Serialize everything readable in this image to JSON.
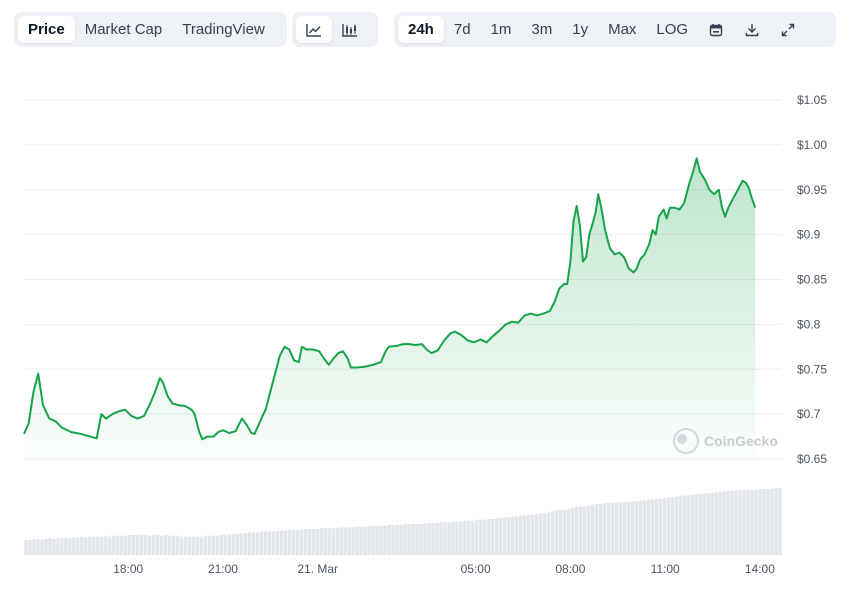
{
  "toolbar": {
    "view_tabs": [
      {
        "label": "Price",
        "active": true
      },
      {
        "label": "Market Cap",
        "active": false
      },
      {
        "label": "TradingView",
        "active": false
      }
    ],
    "chart_type_icons": [
      "line-chart-icon",
      "candlestick-chart-icon"
    ],
    "ranges": [
      {
        "label": "24h",
        "active": true
      },
      {
        "label": "7d",
        "active": false
      },
      {
        "label": "1m",
        "active": false
      },
      {
        "label": "3m",
        "active": false
      },
      {
        "label": "1y",
        "active": false
      },
      {
        "label": "Max",
        "active": false
      },
      {
        "label": "LOG",
        "active": false
      }
    ],
    "action_icons": [
      "calendar-icon",
      "download-icon",
      "expand-icon"
    ]
  },
  "watermark": "CoinGecko",
  "colors": {
    "line": "#16a34a",
    "fill_top": "#c6ecd2",
    "volume": "#e2e5ea",
    "grid": "#eceef1"
  },
  "chart_data": {
    "type": "area",
    "title": "",
    "xlabel": "",
    "ylabel": "",
    "ylim": [
      0.65,
      1.05
    ],
    "y_ticks": [
      1.05,
      1.0,
      0.95,
      0.9,
      0.85,
      0.8,
      0.75,
      0.7,
      0.65
    ],
    "y_tick_labels": [
      "$1.05",
      "$1.00",
      "$0.95",
      "$0.9",
      "$0.85",
      "$0.8",
      "$0.75",
      "$0.7",
      "$0.65"
    ],
    "x_range_hours": [
      14.7,
      38.7
    ],
    "x_ticks": [
      {
        "hour": 18,
        "label": "18:00"
      },
      {
        "hour": 21,
        "label": "21:00"
      },
      {
        "hour": 24,
        "label": "21. Mar"
      },
      {
        "hour": 29,
        "label": "05:00"
      },
      {
        "hour": 32,
        "label": "08:00"
      },
      {
        "hour": 35,
        "label": "11:00"
      },
      {
        "hour": 38,
        "label": "14:00"
      }
    ],
    "grid": true,
    "series": [
      {
        "points": [
          [
            14.7,
            0.678
          ],
          [
            14.85,
            0.69
          ],
          [
            15.0,
            0.725
          ],
          [
            15.15,
            0.745
          ],
          [
            15.3,
            0.71
          ],
          [
            15.5,
            0.695
          ],
          [
            15.7,
            0.692
          ],
          [
            15.9,
            0.685
          ],
          [
            16.2,
            0.68
          ],
          [
            16.5,
            0.678
          ],
          [
            16.8,
            0.675
          ],
          [
            17.0,
            0.673
          ],
          [
            17.15,
            0.7
          ],
          [
            17.3,
            0.695
          ],
          [
            17.5,
            0.7
          ],
          [
            17.7,
            0.703
          ],
          [
            17.9,
            0.705
          ],
          [
            18.1,
            0.698
          ],
          [
            18.3,
            0.695
          ],
          [
            18.5,
            0.698
          ],
          [
            18.7,
            0.712
          ],
          [
            18.85,
            0.725
          ],
          [
            19.0,
            0.74
          ],
          [
            19.1,
            0.735
          ],
          [
            19.25,
            0.72
          ],
          [
            19.4,
            0.712
          ],
          [
            19.6,
            0.71
          ],
          [
            19.8,
            0.709
          ],
          [
            20.0,
            0.705
          ],
          [
            20.1,
            0.7
          ],
          [
            20.25,
            0.68
          ],
          [
            20.35,
            0.672
          ],
          [
            20.5,
            0.675
          ],
          [
            20.7,
            0.675
          ],
          [
            20.85,
            0.68
          ],
          [
            21.0,
            0.682
          ],
          [
            21.2,
            0.679
          ],
          [
            21.4,
            0.681
          ],
          [
            21.6,
            0.695
          ],
          [
            21.75,
            0.688
          ],
          [
            21.9,
            0.679
          ],
          [
            22.0,
            0.678
          ],
          [
            22.15,
            0.69
          ],
          [
            22.35,
            0.705
          ],
          [
            22.5,
            0.725
          ],
          [
            22.65,
            0.745
          ],
          [
            22.8,
            0.765
          ],
          [
            22.95,
            0.775
          ],
          [
            23.1,
            0.772
          ],
          [
            23.25,
            0.76
          ],
          [
            23.4,
            0.758
          ],
          [
            23.5,
            0.775
          ],
          [
            23.65,
            0.772
          ],
          [
            23.85,
            0.772
          ],
          [
            24.05,
            0.77
          ],
          [
            24.2,
            0.762
          ],
          [
            24.35,
            0.755
          ],
          [
            24.5,
            0.762
          ],
          [
            24.65,
            0.768
          ],
          [
            24.8,
            0.77
          ],
          [
            24.95,
            0.762
          ],
          [
            25.05,
            0.752
          ],
          [
            25.25,
            0.752
          ],
          [
            25.5,
            0.753
          ],
          [
            25.75,
            0.755
          ],
          [
            26.0,
            0.758
          ],
          [
            26.15,
            0.77
          ],
          [
            26.25,
            0.775
          ],
          [
            26.5,
            0.776
          ],
          [
            26.7,
            0.778
          ],
          [
            26.9,
            0.778
          ],
          [
            27.1,
            0.777
          ],
          [
            27.3,
            0.778
          ],
          [
            27.45,
            0.772
          ],
          [
            27.6,
            0.768
          ],
          [
            27.8,
            0.771
          ],
          [
            28.0,
            0.782
          ],
          [
            28.2,
            0.79
          ],
          [
            28.35,
            0.792
          ],
          [
            28.55,
            0.788
          ],
          [
            28.75,
            0.782
          ],
          [
            28.95,
            0.78
          ],
          [
            29.15,
            0.783
          ],
          [
            29.35,
            0.78
          ],
          [
            29.55,
            0.787
          ],
          [
            29.75,
            0.793
          ],
          [
            29.95,
            0.8
          ],
          [
            30.15,
            0.803
          ],
          [
            30.35,
            0.802
          ],
          [
            30.55,
            0.81
          ],
          [
            30.75,
            0.812
          ],
          [
            30.95,
            0.81
          ],
          [
            31.15,
            0.812
          ],
          [
            31.35,
            0.815
          ],
          [
            31.5,
            0.825
          ],
          [
            31.65,
            0.84
          ],
          [
            31.8,
            0.845
          ],
          [
            31.9,
            0.845
          ],
          [
            32.0,
            0.87
          ],
          [
            32.1,
            0.915
          ],
          [
            32.2,
            0.932
          ],
          [
            32.3,
            0.91
          ],
          [
            32.4,
            0.87
          ],
          [
            32.5,
            0.875
          ],
          [
            32.6,
            0.9
          ],
          [
            32.7,
            0.912
          ],
          [
            32.8,
            0.925
          ],
          [
            32.88,
            0.945
          ],
          [
            32.98,
            0.93
          ],
          [
            33.1,
            0.905
          ],
          [
            33.25,
            0.885
          ],
          [
            33.4,
            0.878
          ],
          [
            33.55,
            0.88
          ],
          [
            33.7,
            0.875
          ],
          [
            33.85,
            0.862
          ],
          [
            34.0,
            0.858
          ],
          [
            34.1,
            0.862
          ],
          [
            34.2,
            0.872
          ],
          [
            34.35,
            0.878
          ],
          [
            34.5,
            0.89
          ],
          [
            34.6,
            0.905
          ],
          [
            34.7,
            0.9
          ],
          [
            34.8,
            0.92
          ],
          [
            34.95,
            0.928
          ],
          [
            35.05,
            0.918
          ],
          [
            35.15,
            0.93
          ],
          [
            35.3,
            0.93
          ],
          [
            35.45,
            0.928
          ],
          [
            35.6,
            0.935
          ],
          [
            35.75,
            0.955
          ],
          [
            35.9,
            0.972
          ],
          [
            36.0,
            0.985
          ],
          [
            36.1,
            0.97
          ],
          [
            36.25,
            0.962
          ],
          [
            36.4,
            0.95
          ],
          [
            36.55,
            0.945
          ],
          [
            36.7,
            0.95
          ],
          [
            36.8,
            0.93
          ],
          [
            36.9,
            0.92
          ],
          [
            37.0,
            0.93
          ],
          [
            37.15,
            0.94
          ],
          [
            37.3,
            0.95
          ],
          [
            37.45,
            0.96
          ],
          [
            37.55,
            0.958
          ],
          [
            37.65,
            0.952
          ],
          [
            37.75,
            0.94
          ],
          [
            37.85,
            0.93
          ]
        ]
      }
    ],
    "volume": [
      18,
      18,
      19,
      19,
      18,
      19,
      20,
      19,
      20,
      20,
      21,
      20,
      21,
      21,
      22,
      21,
      22,
      22,
      22,
      22,
      23,
      22,
      23,
      23,
      23,
      23,
      24,
      24,
      24,
      24,
      24,
      23,
      24,
      24,
      23,
      24,
      23,
      23,
      23,
      22,
      22,
      22,
      22,
      22,
      22,
      23,
      23,
      23,
      23,
      24,
      24,
      25,
      25,
      25,
      26,
      26,
      27,
      27,
      27,
      28,
      28,
      28,
      28,
      29,
      29,
      29,
      30,
      30,
      30,
      30,
      31,
      31,
      31,
      31,
      32,
      32,
      32,
      32,
      32,
      33,
      33,
      33,
      33,
      34,
      34,
      34,
      34,
      35,
      35,
      35,
      35,
      36,
      36,
      36,
      36,
      37,
      37,
      37,
      37,
      37,
      38,
      38,
      38,
      38,
      39,
      39,
      39,
      40,
      40,
      40,
      41,
      41,
      41,
      42,
      42,
      42,
      43,
      43,
      44,
      44,
      45,
      45,
      46,
      46,
      47,
      47,
      48,
      48,
      49,
      50,
      50,
      51,
      52,
      53,
      54,
      54,
      55,
      56,
      57,
      58,
      58,
      59,
      60,
      61,
      61,
      62,
      62,
      62,
      63,
      63,
      63,
      63,
      64,
      64,
      65,
      65,
      66,
      66,
      67,
      67,
      68,
      69,
      69,
      70,
      70,
      71,
      71,
      72,
      72,
      73,
      73,
      74,
      74,
      75,
      75,
      76,
      76,
      77,
      77,
      77,
      78,
      78,
      78,
      78,
      79,
      79,
      79,
      79,
      80,
      80
    ]
  }
}
